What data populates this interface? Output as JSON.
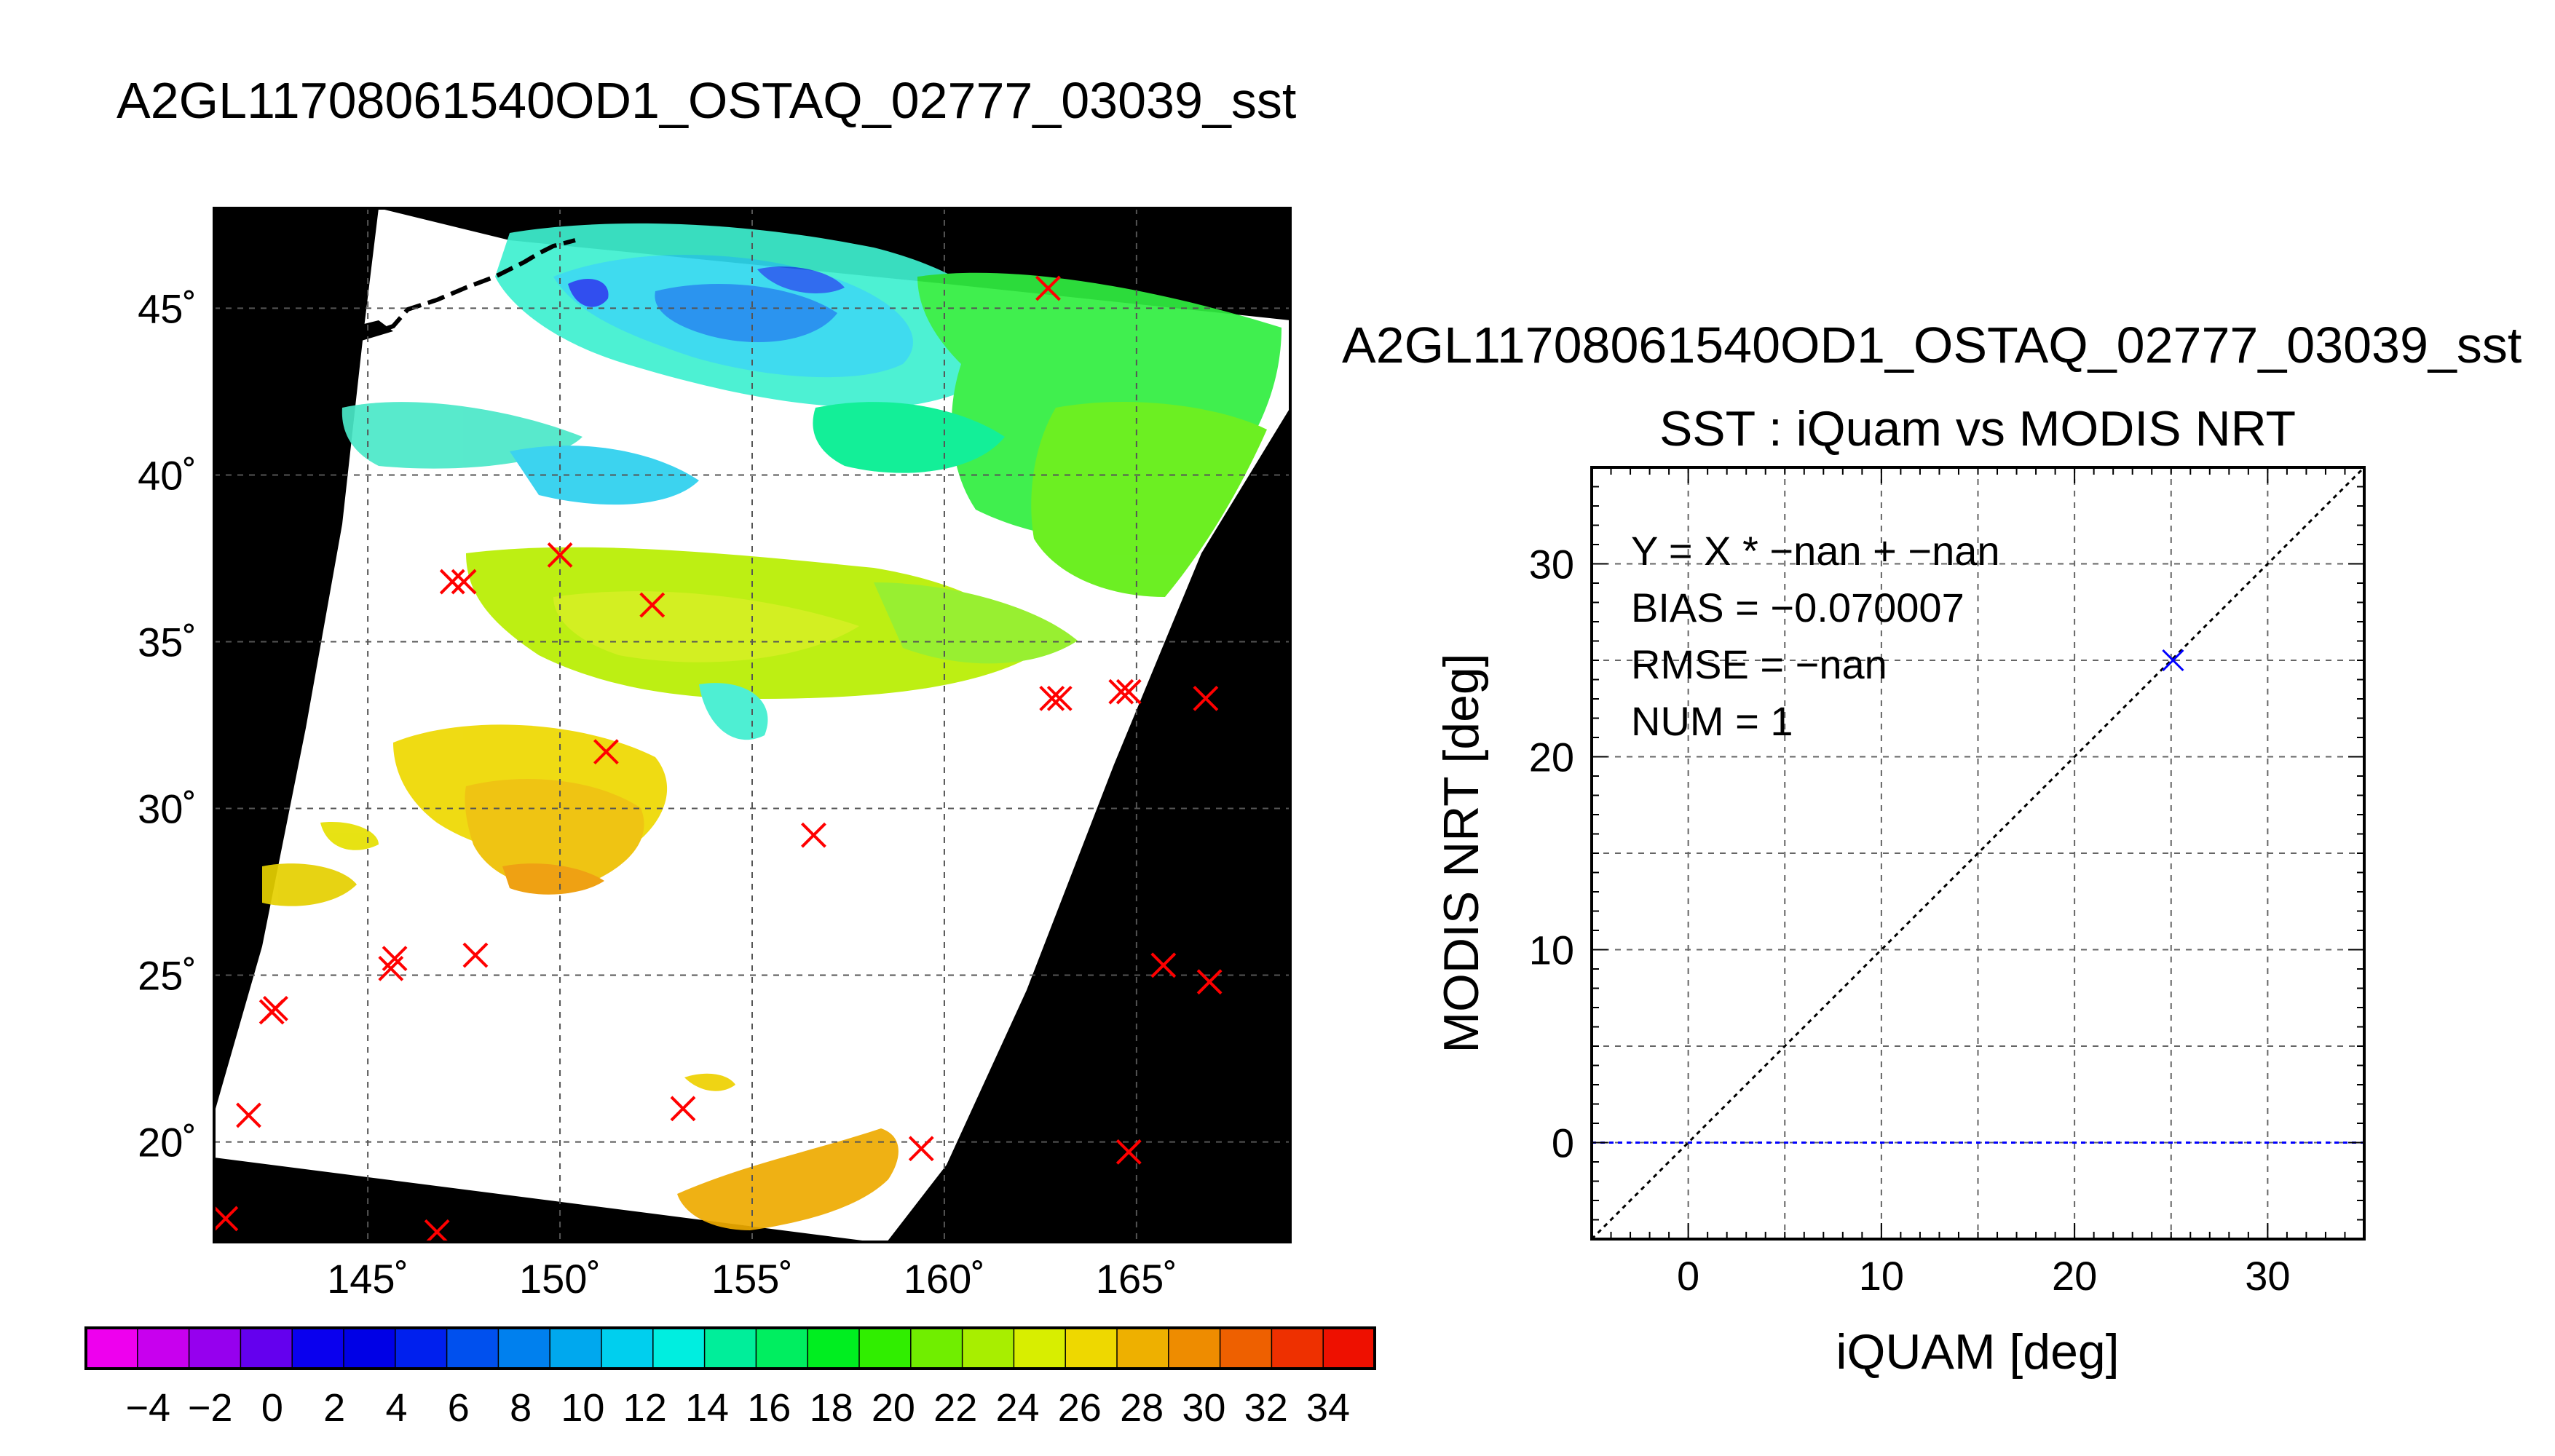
{
  "page_title": "A2GL11708061540OD1_OSTAQ_02777_03039_sst",
  "map": {
    "lat_ticks": [
      "45˚",
      "40˚",
      "35˚",
      "30˚",
      "25˚",
      "20˚"
    ],
    "lon_ticks": [
      "145˚",
      "150˚",
      "155˚",
      "160˚",
      "165˚"
    ],
    "lat_values": [
      45,
      40,
      35,
      30,
      25,
      20
    ],
    "lon_values": [
      145,
      150,
      155,
      160,
      165
    ],
    "lon_range": [
      141,
      169
    ],
    "lat_range": [
      17,
      48
    ],
    "background_color": "#000000",
    "swath_color": "#ffffff",
    "marker_color": "#ff0000",
    "buoy_marks": [
      [
        162.7,
        45.6
      ],
      [
        150.0,
        37.6
      ],
      [
        147.2,
        36.8
      ],
      [
        147.5,
        36.8
      ],
      [
        152.4,
        36.1
      ],
      [
        151.2,
        31.7
      ],
      [
        156.6,
        29.2
      ],
      [
        162.8,
        33.3
      ],
      [
        163.0,
        33.3
      ],
      [
        164.6,
        33.5
      ],
      [
        164.8,
        33.5
      ],
      [
        166.8,
        33.3
      ],
      [
        142.5,
        23.9
      ],
      [
        142.6,
        24.0
      ],
      [
        145.6,
        25.2
      ],
      [
        145.7,
        25.5
      ],
      [
        147.8,
        25.6
      ],
      [
        165.7,
        25.3
      ],
      [
        166.9,
        24.8
      ],
      [
        141.9,
        20.8
      ],
      [
        153.2,
        21.0
      ],
      [
        159.4,
        19.8
      ],
      [
        164.8,
        19.7
      ],
      [
        141.3,
        17.7
      ],
      [
        146.8,
        17.3
      ]
    ]
  },
  "colorbar": {
    "labels": [
      "−4",
      "−2",
      "0",
      "2",
      "4",
      "6",
      "8",
      "10",
      "12",
      "14",
      "16",
      "18",
      "20",
      "22",
      "24",
      "26",
      "28",
      "30",
      "32",
      "34"
    ],
    "colors": [
      "#ee00ee",
      "#c800ee",
      "#9600ee",
      "#6400ee",
      "#0a00ee",
      "#0000e6",
      "#0020ee",
      "#0050ee",
      "#0080ee",
      "#00a8ee",
      "#00cfee",
      "#00eee0",
      "#00ee9a",
      "#00ee60",
      "#00ee20",
      "#30ee00",
      "#70ee00",
      "#a8ee00",
      "#d8ee00",
      "#eed800",
      "#eeb000",
      "#ee8c00",
      "#ee6000",
      "#ee3000",
      "#ee1000"
    ]
  },
  "scatter": {
    "file_label": "A2GL11708061540OD1_OSTAQ_02777_03039_sst",
    "stats_lines": [
      "Y = X * −nan + −nan",
      "BIAS = −0.070007",
      "RMSE = −nan",
      "NUM = 1"
    ]
  },
  "chart_data": {
    "type": "scatter",
    "title": "SST : iQuam vs MODIS NRT",
    "xlabel": "iQUAM [deg]",
    "ylabel": "MODIS NRT [deg]",
    "xlim": [
      -5,
      35
    ],
    "ylim": [
      -5,
      35
    ],
    "x_ticks": [
      0,
      10,
      20,
      30
    ],
    "y_ticks": [
      0,
      10,
      20,
      30
    ],
    "x_tick_labels": [
      "0",
      "10",
      "20",
      "30"
    ],
    "y_tick_labels": [
      "0",
      "10",
      "20",
      "30"
    ],
    "grid": true,
    "series": [
      {
        "points": [
          [
            25.1,
            25.0
          ]
        ],
        "color": "#0000ff",
        "marker": "x"
      }
    ],
    "reference_line": {
      "slope": 1,
      "intercept": 0,
      "style": "dotted",
      "color": "#000000"
    },
    "fit_line": {
      "y": 0,
      "style": "dotted",
      "color": "#0000ff"
    }
  }
}
